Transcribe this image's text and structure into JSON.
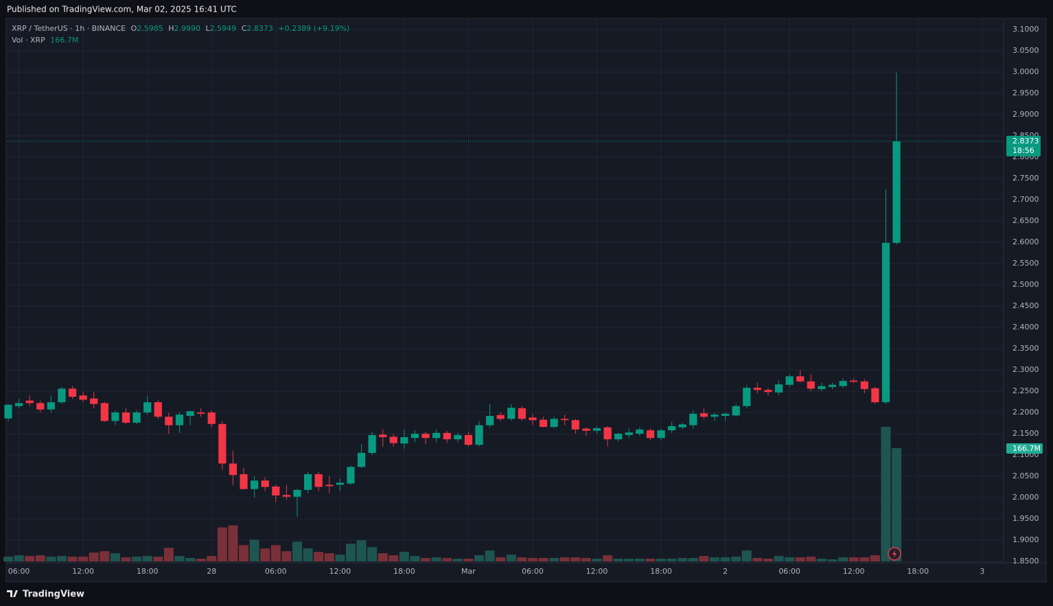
{
  "header": {
    "published": "Published on TradingView.com, Mar 02, 2025 16:41 UTC"
  },
  "legend": {
    "symbol": "XRP / TetherUS · 1h · BINANCE",
    "items": [
      {
        "key": "O",
        "value": "2.5985"
      },
      {
        "key": "H",
        "value": "2.9990"
      },
      {
        "key": "L",
        "value": "2.5949"
      },
      {
        "key": "C",
        "value": "2.8373"
      }
    ],
    "change": "+0.2389 (+9.19%)",
    "vol_name": "Vol · XRP",
    "vol_value": "166.7M"
  },
  "price_tag": {
    "price": "2.8373",
    "countdown": "18:56"
  },
  "footer": {
    "brand": "TradingView"
  },
  "chart_data": {
    "type": "candlestick",
    "categories": [
      null,
      "06:00",
      null,
      null,
      null,
      null,
      null,
      "12:00",
      null,
      null,
      null,
      null,
      null,
      "18:00",
      null,
      null,
      null,
      null,
      null,
      "28",
      null,
      null,
      null,
      null,
      null,
      "06:00",
      null,
      null,
      null,
      null,
      null,
      "12:00",
      null,
      null,
      null,
      null,
      null,
      "18:00",
      null,
      null,
      null,
      null,
      null,
      "Mar",
      null,
      null,
      null,
      null,
      null,
      "06:00",
      null,
      null,
      null,
      null,
      null,
      "12:00",
      null,
      null,
      null,
      null,
      null,
      "18:00",
      null,
      null,
      null,
      null,
      null,
      "2",
      null,
      null,
      null,
      null,
      null,
      "06:00",
      null,
      null,
      null,
      null,
      null,
      "12:00",
      null,
      null,
      null,
      null,
      null,
      "18:00",
      null,
      null,
      null,
      null,
      null,
      "3",
      null,
      null
    ],
    "open": [
      2.186,
      2.215,
      2.228,
      2.222,
      2.207,
      2.224,
      2.256,
      2.24,
      2.233,
      2.222,
      2.18,
      2.2,
      2.176,
      2.2,
      2.224,
      2.19,
      2.17,
      2.192,
      2.2,
      2.2,
      2.173,
      2.08,
      2.055,
      2.02,
      2.04,
      2.026,
      2.006,
      2.002,
      2.018,
      2.055,
      2.03,
      2.03,
      2.033,
      2.072,
      2.105,
      2.148,
      2.143,
      2.127,
      2.14,
      2.15,
      2.14,
      2.152,
      2.137,
      2.147,
      2.124,
      2.17,
      2.194,
      2.185,
      2.21,
      2.188,
      2.183,
      2.166,
      2.185,
      2.182,
      2.162,
      2.157,
      2.165,
      2.137,
      2.147,
      2.15,
      2.158,
      2.14,
      2.158,
      2.165,
      2.17,
      2.198,
      2.19,
      2.192,
      2.193,
      2.215,
      2.258,
      2.253,
      2.247,
      2.265,
      2.285,
      2.273,
      2.255,
      2.26,
      2.262,
      2.275,
      2.273,
      2.257,
      2.224,
      2.5985,
      null,
      null,
      null,
      null,
      null,
      null,
      null,
      null,
      null,
      null
    ],
    "high": [
      2.22,
      2.232,
      2.24,
      2.228,
      2.24,
      2.26,
      2.262,
      2.248,
      2.248,
      2.225,
      2.205,
      2.21,
      2.205,
      2.238,
      2.23,
      2.2,
      2.2,
      2.205,
      2.21,
      2.205,
      2.18,
      2.11,
      2.07,
      2.05,
      2.048,
      2.03,
      2.03,
      2.02,
      2.06,
      2.06,
      2.05,
      2.045,
      2.075,
      2.125,
      2.155,
      2.16,
      2.15,
      2.16,
      2.158,
      2.155,
      2.16,
      2.157,
      2.152,
      2.155,
      2.18,
      2.22,
      2.2,
      2.22,
      2.215,
      2.196,
      2.19,
      2.19,
      2.195,
      2.185,
      2.165,
      2.168,
      2.168,
      2.152,
      2.162,
      2.165,
      2.162,
      2.162,
      2.178,
      2.175,
      2.205,
      2.21,
      2.2,
      2.2,
      2.22,
      2.265,
      2.27,
      2.258,
      2.275,
      2.29,
      2.3,
      2.29,
      2.27,
      2.27,
      2.28,
      2.28,
      2.278,
      2.26,
      2.725,
      2.999,
      null,
      null,
      null,
      null,
      null,
      null,
      null,
      null,
      null,
      null
    ],
    "low": [
      2.18,
      2.21,
      2.215,
      2.2,
      2.2,
      2.22,
      2.232,
      2.225,
      2.21,
      2.178,
      2.17,
      2.172,
      2.172,
      2.195,
      2.185,
      2.15,
      2.152,
      2.17,
      2.19,
      2.165,
      2.065,
      2.03,
      2.02,
      2.0,
      2.015,
      1.99,
      1.995,
      1.955,
      2.01,
      2.015,
      2.01,
      2.015,
      2.03,
      2.07,
      2.1,
      2.12,
      2.12,
      2.115,
      2.13,
      2.125,
      2.13,
      2.128,
      2.13,
      2.12,
      2.12,
      2.165,
      2.18,
      2.18,
      2.18,
      2.17,
      2.165,
      2.163,
      2.17,
      2.15,
      2.145,
      2.15,
      2.12,
      2.132,
      2.14,
      2.145,
      2.135,
      2.135,
      2.152,
      2.16,
      2.162,
      2.185,
      2.18,
      2.18,
      2.19,
      2.21,
      2.245,
      2.24,
      2.24,
      2.26,
      2.27,
      2.25,
      2.25,
      2.255,
      2.258,
      2.27,
      2.245,
      2.22,
      2.22,
      2.5949,
      null,
      null,
      null,
      null,
      null,
      null,
      null,
      null,
      null,
      null
    ],
    "close": [
      2.218,
      2.222,
      2.222,
      2.207,
      2.224,
      2.256,
      2.237,
      2.23,
      2.22,
      2.18,
      2.2,
      2.176,
      2.2,
      2.224,
      2.19,
      2.17,
      2.195,
      2.203,
      2.197,
      2.173,
      2.08,
      2.053,
      2.02,
      2.04,
      2.025,
      2.005,
      2.002,
      2.018,
      2.055,
      2.025,
      2.027,
      2.035,
      2.072,
      2.105,
      2.147,
      2.142,
      2.128,
      2.142,
      2.15,
      2.14,
      2.152,
      2.137,
      2.147,
      2.124,
      2.17,
      2.192,
      2.185,
      2.211,
      2.185,
      2.182,
      2.166,
      2.185,
      2.182,
      2.16,
      2.157,
      2.163,
      2.137,
      2.15,
      2.153,
      2.16,
      2.14,
      2.158,
      2.168,
      2.172,
      2.197,
      2.19,
      2.195,
      2.197,
      2.215,
      2.258,
      2.253,
      2.248,
      2.266,
      2.285,
      2.273,
      2.256,
      2.262,
      2.265,
      2.274,
      2.272,
      2.255,
      2.224,
      2.5985,
      2.8373,
      null,
      null,
      null,
      null,
      null,
      null,
      null,
      null,
      null,
      null
    ],
    "volume": [
      7,
      9,
      8,
      9,
      7,
      8,
      7,
      7,
      13,
      15,
      12,
      6,
      7,
      8,
      7,
      20,
      8,
      5,
      4,
      8,
      50,
      53,
      24,
      32,
      19,
      24,
      15,
      29,
      19,
      14,
      12,
      10,
      26,
      31,
      21,
      12,
      9,
      14,
      8,
      5,
      6,
      5,
      4,
      4,
      9,
      16,
      6,
      10,
      6,
      5,
      5,
      5,
      6,
      6,
      5,
      4,
      9,
      4,
      4,
      4,
      4,
      4,
      4,
      5,
      5,
      8,
      6,
      6,
      7,
      16,
      5,
      4,
      8,
      6,
      6,
      7,
      4,
      3,
      6,
      6,
      6,
      9,
      198,
      166.7,
      null,
      null,
      null,
      null,
      null,
      null,
      null,
      null,
      null,
      null
    ],
    "up_color": "#089981",
    "down_color": "#f23645",
    "volume_up_color": "#1f5550",
    "volume_down_color": "#7a3038",
    "ylim": [
      1.8468,
      3.1242
    ],
    "yticks": [
      {
        "value": 1.85,
        "label": "1.8500"
      },
      {
        "value": 1.9,
        "label": "1.9000"
      },
      {
        "value": 1.95,
        "label": "1.9500"
      },
      {
        "value": 2.0,
        "label": "2.0000"
      },
      {
        "value": 2.05,
        "label": "2.0500"
      },
      {
        "value": 2.1,
        "label": "2.1000"
      },
      {
        "value": 2.15,
        "label": "2.1500"
      },
      {
        "value": 2.2,
        "label": "2.2000"
      },
      {
        "value": 2.25,
        "label": "2.2500"
      },
      {
        "value": 2.3,
        "label": "2.3000"
      },
      {
        "value": 2.35,
        "label": "2.3500"
      },
      {
        "value": 2.4,
        "label": "2.4000"
      },
      {
        "value": 2.45,
        "label": "2.4500"
      },
      {
        "value": 2.5,
        "label": "2.5000"
      },
      {
        "value": 2.55,
        "label": "2.5500"
      },
      {
        "value": 2.6,
        "label": "2.6000"
      },
      {
        "value": 2.65,
        "label": "2.6500"
      },
      {
        "value": 2.7,
        "label": "2.7000"
      },
      {
        "value": 2.75,
        "label": "2.7500"
      },
      {
        "value": 2.8,
        "label": "2.8000"
      },
      {
        "value": 2.85,
        "label": "2.8500"
      },
      {
        "value": 2.9,
        "label": "2.9000"
      },
      {
        "value": 2.95,
        "label": "2.9500"
      },
      {
        "value": 3.0,
        "label": "3.0000"
      },
      {
        "value": 3.05,
        "label": "3.0500"
      },
      {
        "value": 3.1,
        "label": "3.1000"
      }
    ],
    "grid": true
  }
}
